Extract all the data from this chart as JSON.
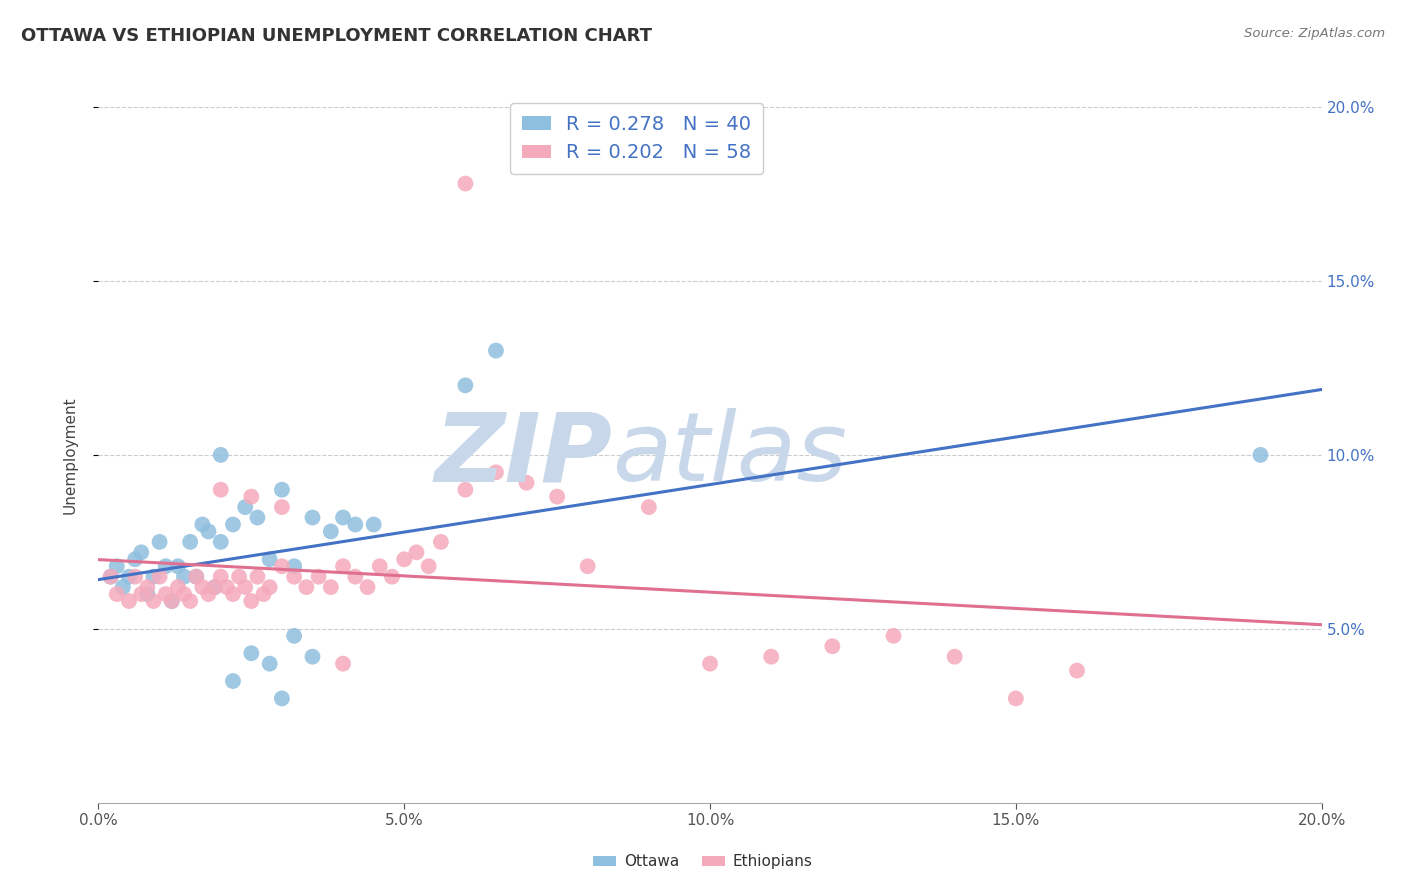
{
  "title": "OTTAWA VS ETHIOPIAN UNEMPLOYMENT CORRELATION CHART",
  "source": "Source: ZipAtlas.com",
  "ylabel": "Unemployment",
  "xlim": [
    0.0,
    0.2
  ],
  "ylim": [
    0.0,
    0.2
  ],
  "xticks": [
    0.0,
    0.05,
    0.1,
    0.15,
    0.2
  ],
  "yticks": [
    0.05,
    0.1,
    0.15,
    0.2
  ],
  "xtick_labels": [
    "0.0%",
    "5.0%",
    "10.0%",
    "15.0%",
    "20.0%"
  ],
  "ytick_labels": [
    "5.0%",
    "10.0%",
    "15.0%",
    "20.0%"
  ],
  "grid_color": "#cccccc",
  "background_color": "#ffffff",
  "ottawa_color": "#8fbfde",
  "ethiopian_color": "#f5aabb",
  "ottawa_line_color": "#4472c4",
  "ethiopian_line_color": "#e07090",
  "ottawa_R": 0.278,
  "ottawa_N": 40,
  "ethiopian_R": 0.202,
  "ethiopian_N": 58,
  "watermark_zip_color": "#c8d8ea",
  "watermark_atlas_color": "#c8d8ea",
  "ottawa_x": [
    0.002,
    0.003,
    0.004,
    0.005,
    0.006,
    0.007,
    0.008,
    0.009,
    0.01,
    0.011,
    0.012,
    0.013,
    0.014,
    0.015,
    0.016,
    0.017,
    0.018,
    0.019,
    0.02,
    0.022,
    0.024,
    0.026,
    0.028,
    0.03,
    0.032,
    0.035,
    0.038,
    0.04,
    0.042,
    0.045,
    0.022,
    0.025,
    0.028,
    0.03,
    0.032,
    0.035,
    0.06,
    0.065,
    0.19,
    0.02
  ],
  "ottawa_y": [
    0.065,
    0.068,
    0.062,
    0.065,
    0.07,
    0.072,
    0.06,
    0.065,
    0.075,
    0.068,
    0.058,
    0.068,
    0.065,
    0.075,
    0.065,
    0.08,
    0.078,
    0.062,
    0.075,
    0.08,
    0.085,
    0.082,
    0.07,
    0.09,
    0.068,
    0.082,
    0.078,
    0.082,
    0.08,
    0.08,
    0.035,
    0.043,
    0.04,
    0.03,
    0.048,
    0.042,
    0.12,
    0.13,
    0.1,
    0.1
  ],
  "ethiopian_x": [
    0.002,
    0.003,
    0.005,
    0.006,
    0.007,
    0.008,
    0.009,
    0.01,
    0.011,
    0.012,
    0.013,
    0.014,
    0.015,
    0.016,
    0.017,
    0.018,
    0.019,
    0.02,
    0.021,
    0.022,
    0.023,
    0.024,
    0.025,
    0.026,
    0.027,
    0.028,
    0.03,
    0.032,
    0.034,
    0.036,
    0.038,
    0.04,
    0.042,
    0.044,
    0.046,
    0.048,
    0.05,
    0.052,
    0.054,
    0.056,
    0.06,
    0.065,
    0.07,
    0.075,
    0.08,
    0.09,
    0.1,
    0.11,
    0.12,
    0.13,
    0.14,
    0.15,
    0.16,
    0.02,
    0.025,
    0.03,
    0.04,
    0.06
  ],
  "ethiopian_y": [
    0.065,
    0.06,
    0.058,
    0.065,
    0.06,
    0.062,
    0.058,
    0.065,
    0.06,
    0.058,
    0.062,
    0.06,
    0.058,
    0.065,
    0.062,
    0.06,
    0.062,
    0.065,
    0.062,
    0.06,
    0.065,
    0.062,
    0.058,
    0.065,
    0.06,
    0.062,
    0.068,
    0.065,
    0.062,
    0.065,
    0.062,
    0.068,
    0.065,
    0.062,
    0.068,
    0.065,
    0.07,
    0.072,
    0.068,
    0.075,
    0.09,
    0.095,
    0.092,
    0.088,
    0.068,
    0.085,
    0.04,
    0.042,
    0.045,
    0.048,
    0.042,
    0.03,
    0.038,
    0.09,
    0.088,
    0.085,
    0.04,
    0.178
  ]
}
